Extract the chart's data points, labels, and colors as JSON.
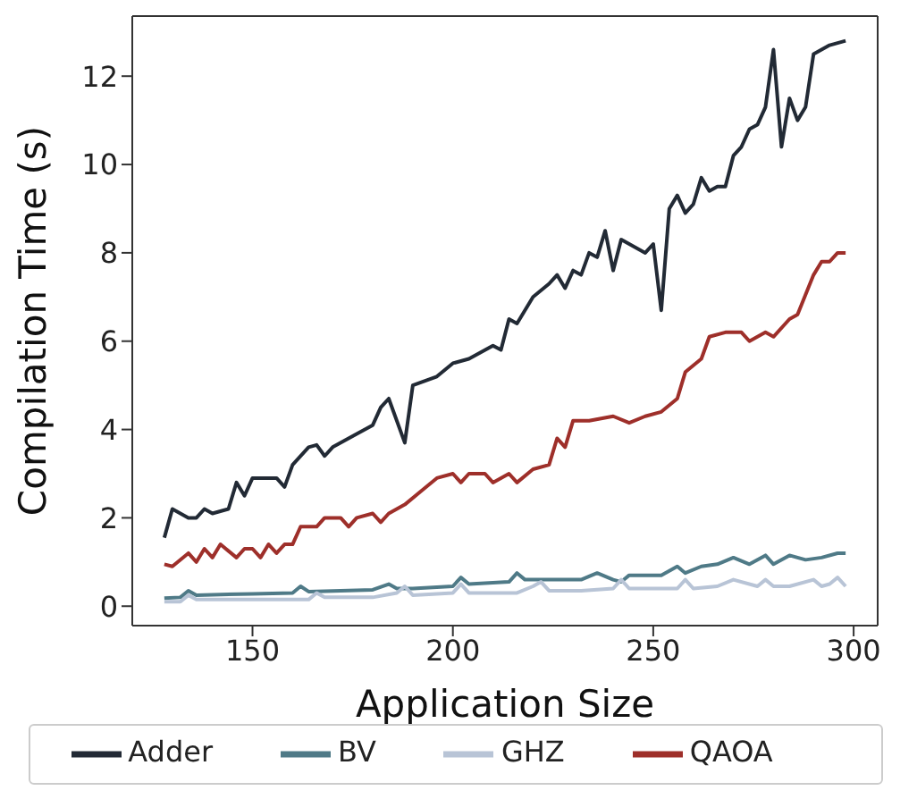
{
  "chart_data": {
    "type": "line",
    "xlabel": "Application Size",
    "ylabel": "Compilation Time (s)",
    "xlim": [
      120,
      306
    ],
    "xticks": [
      150,
      200,
      250,
      300
    ],
    "ylim": [
      -0.44,
      13.36
    ],
    "yticks": [
      0,
      2,
      4,
      6,
      8,
      10,
      12
    ],
    "grid": false,
    "legend": "bottom",
    "marker": "none",
    "line_style": "solid",
    "series": [
      {
        "name": "Adder",
        "color": "#222a35",
        "x": [
          128,
          130,
          134,
          136,
          138,
          140,
          144,
          146,
          148,
          150,
          156,
          158,
          160,
          164,
          166,
          168,
          170,
          176,
          180,
          182,
          184,
          188,
          190,
          196,
          200,
          204,
          210,
          212,
          214,
          216,
          220,
          224,
          226,
          228,
          230,
          232,
          234,
          236,
          238,
          240,
          242,
          248,
          250,
          252,
          254,
          256,
          258,
          260,
          262,
          264,
          266,
          268,
          270,
          272,
          274,
          276,
          278,
          280,
          282,
          284,
          286,
          288,
          290,
          294,
          298
        ],
        "values": [
          1.55,
          2.2,
          2.0,
          2.0,
          2.2,
          2.1,
          2.2,
          2.8,
          2.5,
          2.9,
          2.9,
          2.7,
          3.2,
          3.6,
          3.65,
          3.4,
          3.6,
          3.9,
          4.1,
          4.5,
          4.7,
          3.7,
          5.0,
          5.2,
          5.5,
          5.6,
          5.9,
          5.8,
          6.5,
          6.4,
          7.0,
          7.3,
          7.5,
          7.2,
          7.6,
          7.5,
          8.0,
          7.9,
          8.5,
          7.6,
          8.3,
          8.0,
          8.2,
          6.7,
          9.0,
          9.3,
          8.9,
          9.1,
          9.7,
          9.4,
          9.5,
          9.5,
          10.2,
          10.4,
          10.8,
          10.9,
          11.3,
          12.6,
          10.4,
          11.5,
          11.0,
          11.3,
          12.5,
          12.7,
          12.8
        ]
      },
      {
        "name": "BV",
        "color": "#4f7a87",
        "x": [
          128,
          132,
          134,
          136,
          150,
          160,
          162,
          164,
          180,
          184,
          186,
          190,
          200,
          202,
          204,
          214,
          216,
          218,
          226,
          232,
          236,
          240,
          242,
          244,
          252,
          256,
          258,
          262,
          266,
          270,
          274,
          278,
          280,
          284,
          288,
          292,
          296,
          298
        ],
        "values": [
          0.18,
          0.2,
          0.35,
          0.25,
          0.28,
          0.3,
          0.45,
          0.33,
          0.37,
          0.5,
          0.4,
          0.4,
          0.45,
          0.65,
          0.5,
          0.55,
          0.75,
          0.6,
          0.6,
          0.6,
          0.75,
          0.6,
          0.55,
          0.7,
          0.7,
          0.9,
          0.75,
          0.9,
          0.95,
          1.1,
          0.95,
          1.15,
          0.95,
          1.15,
          1.05,
          1.1,
          1.2,
          1.2
        ]
      },
      {
        "name": "GHZ",
        "color": "#b8c4d6",
        "x": [
          128,
          132,
          134,
          136,
          150,
          160,
          164,
          166,
          168,
          180,
          186,
          188,
          190,
          200,
          202,
          204,
          216,
          220,
          222,
          224,
          232,
          240,
          242,
          244,
          256,
          258,
          260,
          266,
          270,
          276,
          278,
          280,
          284,
          290,
          292,
          294,
          296,
          298
        ],
        "values": [
          0.1,
          0.1,
          0.25,
          0.15,
          0.15,
          0.15,
          0.15,
          0.3,
          0.2,
          0.2,
          0.3,
          0.45,
          0.25,
          0.3,
          0.5,
          0.3,
          0.3,
          0.45,
          0.55,
          0.35,
          0.35,
          0.4,
          0.6,
          0.4,
          0.4,
          0.6,
          0.4,
          0.45,
          0.6,
          0.45,
          0.6,
          0.45,
          0.45,
          0.6,
          0.45,
          0.5,
          0.65,
          0.45
        ]
      },
      {
        "name": "QAOA",
        "color": "#9e2f2a",
        "x": [
          128,
          130,
          134,
          136,
          138,
          140,
          142,
          146,
          148,
          150,
          152,
          154,
          156,
          158,
          160,
          162,
          166,
          168,
          172,
          174,
          176,
          180,
          182,
          184,
          188,
          192,
          196,
          200,
          202,
          204,
          208,
          210,
          214,
          216,
          220,
          224,
          226,
          228,
          230,
          234,
          240,
          244,
          248,
          252,
          256,
          258,
          262,
          264,
          268,
          272,
          274,
          278,
          280,
          284,
          286,
          290,
          292,
          294,
          296,
          298
        ],
        "values": [
          0.95,
          0.9,
          1.2,
          1.0,
          1.3,
          1.1,
          1.4,
          1.1,
          1.3,
          1.3,
          1.1,
          1.4,
          1.2,
          1.4,
          1.4,
          1.8,
          1.8,
          2.0,
          2.0,
          1.8,
          2.0,
          2.1,
          1.9,
          2.1,
          2.3,
          2.6,
          2.9,
          3.0,
          2.8,
          3.0,
          3.0,
          2.8,
          3.0,
          2.8,
          3.1,
          3.2,
          3.8,
          3.6,
          4.2,
          4.2,
          4.3,
          4.15,
          4.3,
          4.4,
          4.7,
          5.3,
          5.6,
          6.1,
          6.2,
          6.2,
          6.0,
          6.2,
          6.1,
          6.5,
          6.6,
          7.5,
          7.8,
          7.8,
          8.0,
          8.0
        ]
      }
    ]
  }
}
